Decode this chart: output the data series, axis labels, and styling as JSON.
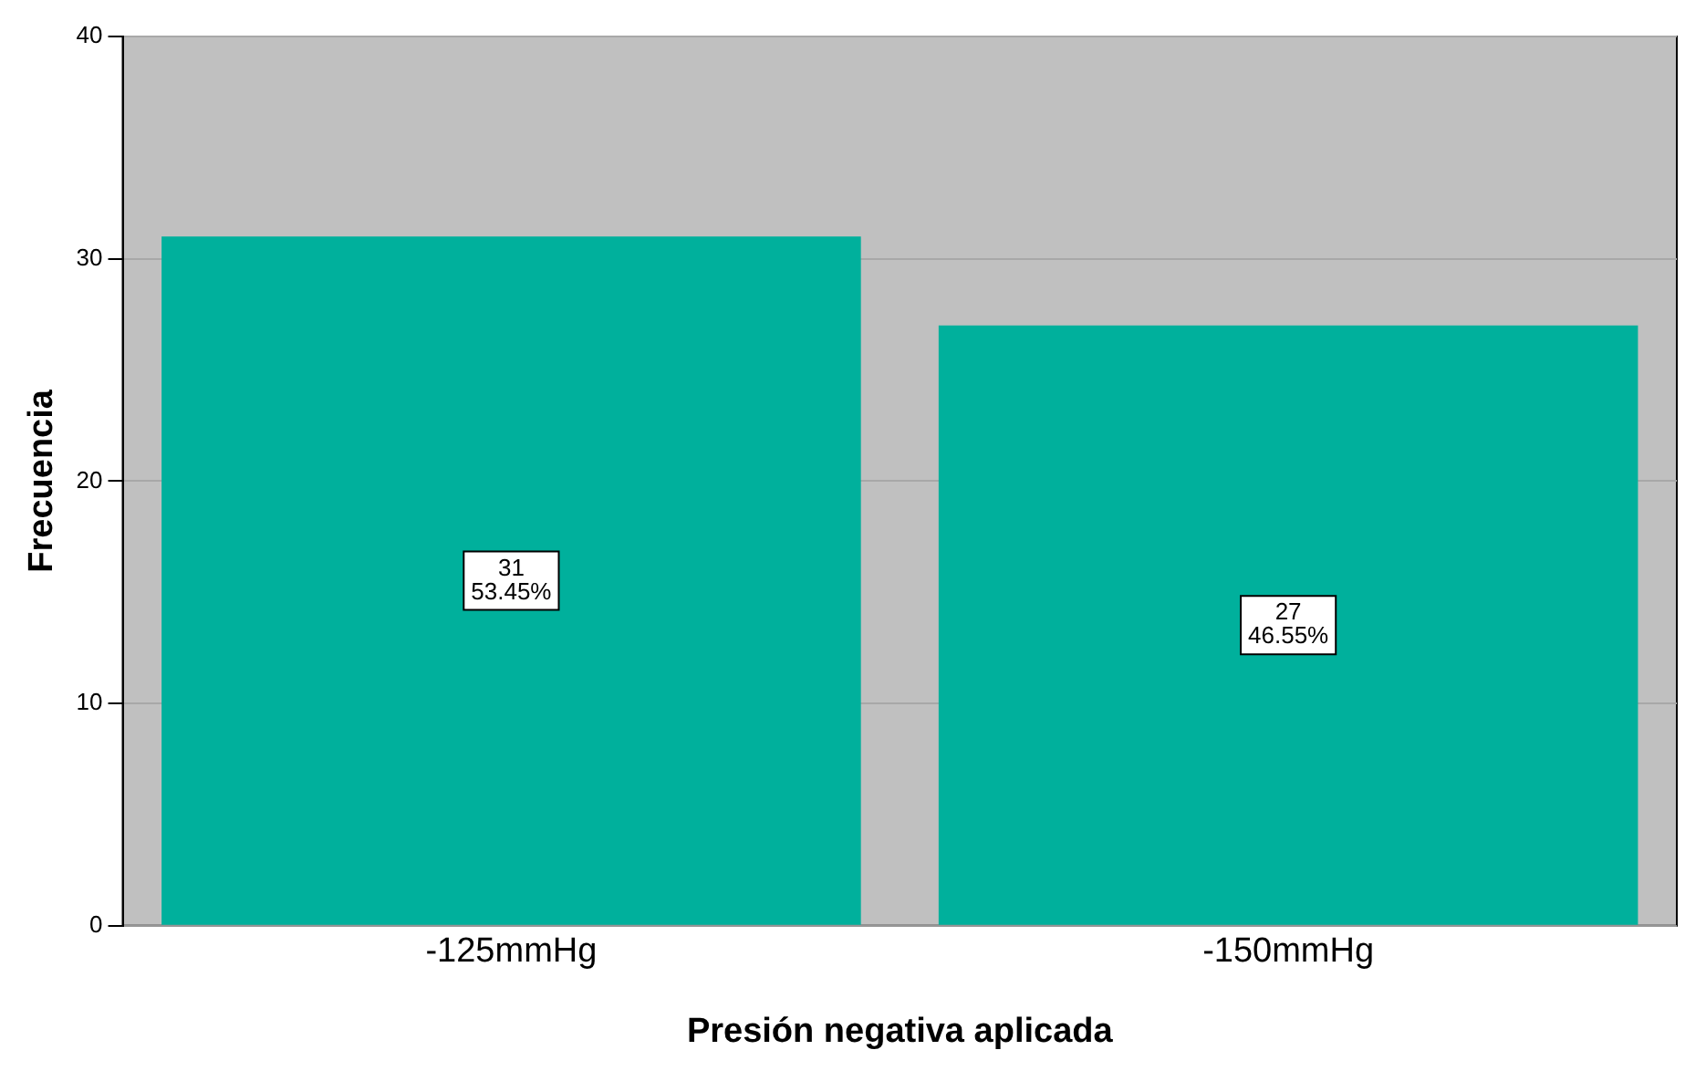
{
  "chart_data": {
    "type": "bar",
    "xlabel": "Presión negativa aplicada",
    "ylabel": "Frecuencia",
    "categories": [
      "-125mmHg",
      "-150mmHg"
    ],
    "values": [
      31,
      27
    ],
    "color": "#00b09c",
    "value_labels": [
      "31\n53.45%",
      "27\n46.55%"
    ],
    "ylim": [
      0,
      40
    ],
    "yticks": [
      0,
      10,
      20,
      30,
      40
    ],
    "grid": "y",
    "legend": false
  }
}
